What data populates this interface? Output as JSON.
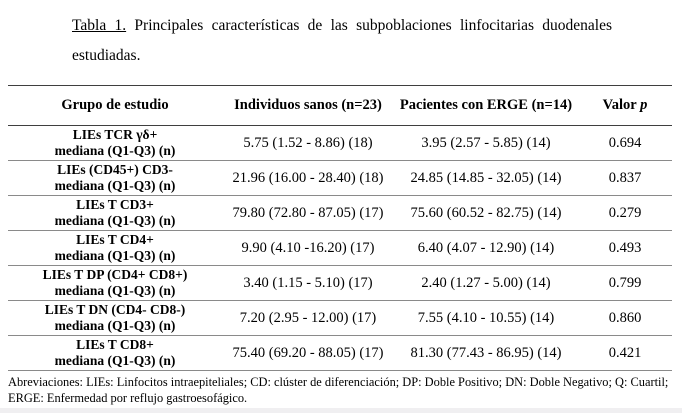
{
  "title": {
    "prefix": "Tabla 1.",
    "rest": " Principales características de las subpoblaciones linfocitarias duodenales estudiadas."
  },
  "table": {
    "headers": {
      "group": "Grupo de estudio",
      "healthy": "Individuos sanos (n=23)",
      "erge": "Pacientes con ERGE (n=14)",
      "p_label": "Valor",
      "p_italic": "p"
    },
    "rows": [
      {
        "group_line1": "LIEs TCR γδ+",
        "group_line2": "mediana (Q1-Q3) (n)",
        "healthy": "5.75 (1.52 - 8.86) (18)",
        "erge": "3.95 (2.57 - 5.85) (14)",
        "p": "0.694"
      },
      {
        "group_line1": "LIEs (CD45+) CD3-",
        "group_line2": "mediana (Q1-Q3) (n)",
        "healthy": "21.96 (16.00 - 28.40) (18)",
        "erge": "24.85 (14.85 - 32.05) (14)",
        "p": "0.837"
      },
      {
        "group_line1": "LIEs T CD3+",
        "group_line2": "mediana (Q1-Q3) (n)",
        "healthy": "79.80 (72.80 - 87.05) (17)",
        "erge": "75.60 (60.52 - 82.75) (14)",
        "p": "0.279"
      },
      {
        "group_line1": "LIEs T CD4+",
        "group_line2": "mediana (Q1-Q3) (n)",
        "healthy": "9.90 (4.10 -16.20) (17)",
        "erge": "6.40 (4.07 - 12.90) (14)",
        "p": "0.493"
      },
      {
        "group_line1": "LIEs T DP (CD4+ CD8+)",
        "group_line2": "mediana (Q1-Q3) (n)",
        "healthy": "3.40 (1.15 - 5.10) (17)",
        "erge": "2.40 (1.27 - 5.00) (14)",
        "p": "0.799"
      },
      {
        "group_line1": "LIEs T DN (CD4- CD8-)",
        "group_line2": "mediana (Q1-Q3) (n)",
        "healthy": "7.20 (2.95 - 12.00) (17)",
        "erge": "7.55 (4.10 - 10.55) (14)",
        "p": "0.860"
      },
      {
        "group_line1": "LIEs T CD8+",
        "group_line2": "mediana (Q1-Q3) (n)",
        "healthy": "75.40 (69.20 - 88.05) (17)",
        "erge": "81.30 (77.43 - 86.95) (14)",
        "p": "0.421"
      }
    ]
  },
  "footnote": "Abreviaciones: LIEs: Linfocitos intraepiteliales; CD: clúster de diferenciación; DP: Doble Positivo; DN: Doble Negativo; Q: Cuartil; ERGE: Enfermedad por reflujo gastroesofágico.",
  "colors": {
    "text": "#000000",
    "rule_dark": "#3f3f3f",
    "rule_light": "#8a8a8a",
    "page_edge": "#f0eff1",
    "background": "#ffffff"
  }
}
